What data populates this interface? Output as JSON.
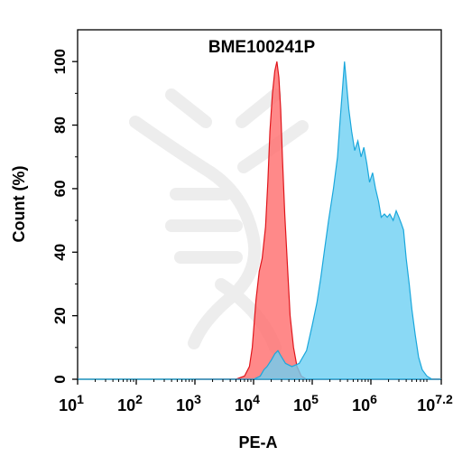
{
  "chart_data": {
    "type": "area",
    "title": "BME100241P",
    "xlabel": "PE-A",
    "ylabel": "Count (%)",
    "x_scale": "log",
    "xlim": [
      10,
      15848932
    ],
    "ylim": [
      0,
      110
    ],
    "x_ticks": [
      {
        "base": "10",
        "exp": "1",
        "value": 10
      },
      {
        "base": "10",
        "exp": "2",
        "value": 100
      },
      {
        "base": "10",
        "exp": "3",
        "value": 1000
      },
      {
        "base": "10",
        "exp": "4",
        "value": 10000
      },
      {
        "base": "10",
        "exp": "5",
        "value": 100000
      },
      {
        "base": "10",
        "exp": "6",
        "value": 1000000
      },
      {
        "base": "10",
        "exp": "7.2",
        "value": 15848932
      }
    ],
    "y_ticks": [
      "0",
      "20",
      "40",
      "60",
      "80",
      "100"
    ],
    "grid": false,
    "series": [
      {
        "color": "#ff6b6b",
        "stroke": "#e0151b",
        "points": [
          [
            1000,
            0
          ],
          [
            5000,
            0
          ],
          [
            7000,
            1
          ],
          [
            8500,
            4
          ],
          [
            9500,
            10
          ],
          [
            11000,
            25
          ],
          [
            12500,
            34
          ],
          [
            14000,
            38
          ],
          [
            16000,
            48
          ],
          [
            17500,
            62
          ],
          [
            19000,
            78
          ],
          [
            21000,
            90
          ],
          [
            23000,
            97
          ],
          [
            25000,
            100
          ],
          [
            27000,
            95
          ],
          [
            29000,
            85
          ],
          [
            31000,
            70
          ],
          [
            34000,
            52
          ],
          [
            38000,
            35
          ],
          [
            42000,
            20
          ],
          [
            48000,
            10
          ],
          [
            55000,
            4
          ],
          [
            65000,
            1
          ],
          [
            80000,
            0
          ],
          [
            15848932,
            0
          ]
        ]
      },
      {
        "color": "#6dd0f2",
        "stroke": "#1aa7dc",
        "points": [
          [
            10,
            0
          ],
          [
            10000,
            0
          ],
          [
            13000,
            1
          ],
          [
            15000,
            3
          ],
          [
            17000,
            4
          ],
          [
            20000,
            6
          ],
          [
            23000,
            8
          ],
          [
            26000,
            9
          ],
          [
            30000,
            7
          ],
          [
            35000,
            5
          ],
          [
            45000,
            4
          ],
          [
            60000,
            5
          ],
          [
            80000,
            9
          ],
          [
            100000,
            17
          ],
          [
            120000,
            24
          ],
          [
            140000,
            32
          ],
          [
            160000,
            40
          ],
          [
            190000,
            50
          ],
          [
            230000,
            60
          ],
          [
            270000,
            70
          ],
          [
            300000,
            82
          ],
          [
            330000,
            92
          ],
          [
            355000,
            100
          ],
          [
            380000,
            94
          ],
          [
            420000,
            85
          ],
          [
            470000,
            78
          ],
          [
            530000,
            72
          ],
          [
            600000,
            75
          ],
          [
            680000,
            70
          ],
          [
            760000,
            73
          ],
          [
            850000,
            68
          ],
          [
            950000,
            62
          ],
          [
            1070000,
            65
          ],
          [
            1200000,
            60
          ],
          [
            1350000,
            56
          ],
          [
            1500000,
            51
          ],
          [
            1700000,
            52
          ],
          [
            1900000,
            51
          ],
          [
            2100000,
            52
          ],
          [
            2400000,
            50
          ],
          [
            2700000,
            53
          ],
          [
            3000000,
            51
          ],
          [
            3300000,
            49
          ],
          [
            3600000,
            47
          ],
          [
            4000000,
            38
          ],
          [
            4500000,
            30
          ],
          [
            5000000,
            22
          ],
          [
            5700000,
            14
          ],
          [
            6500000,
            7
          ],
          [
            7500000,
            3
          ],
          [
            9000000,
            1
          ],
          [
            11000000,
            0
          ],
          [
            15848932,
            0
          ]
        ]
      }
    ]
  }
}
